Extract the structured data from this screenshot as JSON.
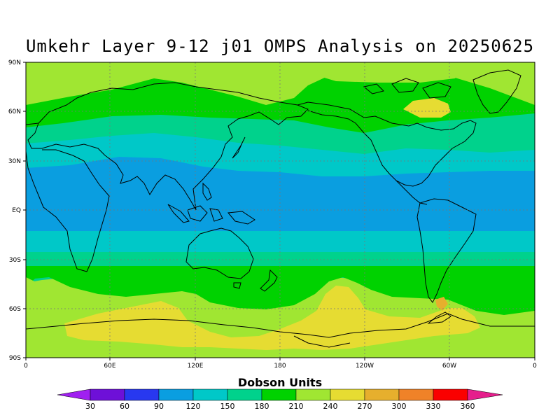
{
  "title": "Umkehr Layer 9-12 j01 OMPS Analysis on 20250625",
  "y_ticks": [
    "90N",
    "60N",
    "30N",
    "EQ",
    "30S",
    "60S",
    "90S"
  ],
  "x_ticks": [
    "0",
    "60E",
    "120E",
    "180",
    "120W",
    "60W",
    "0"
  ],
  "colorbar": {
    "label": "Dobson Units",
    "levels": [
      "30",
      "60",
      "90",
      "120",
      "150",
      "180",
      "210",
      "240",
      "270",
      "300",
      "330",
      "360"
    ],
    "colors": [
      "#a020f0",
      "#6e10d8",
      "#2838f0",
      "#0a9ee0",
      "#00c8c8",
      "#00d28c",
      "#00d200",
      "#a0e632",
      "#e6dc32",
      "#e6af2d",
      "#f08228",
      "#fa0000",
      "#e61e8c"
    ]
  },
  "map": {
    "grid": true,
    "band_colors": {
      "below_60": "#2838f0",
      "60_90": "#0a9ee0",
      "90_120": "#00c8c8",
      "120_150": "#00d28c",
      "150_180": "#00d200",
      "180_210": "#a0e632",
      "210_240": "#e6dc32",
      "240_270": "#e6af2d",
      "coastline": "#000000"
    }
  }
}
